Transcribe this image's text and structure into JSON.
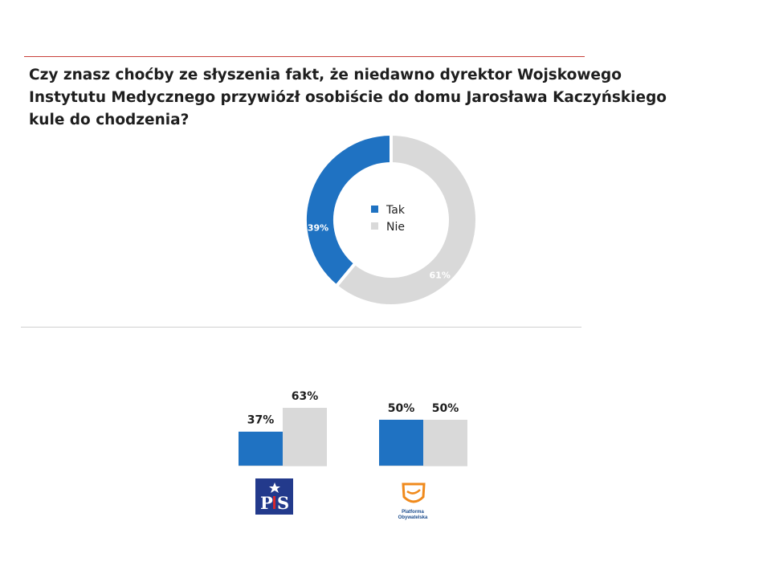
{
  "question": {
    "lines": [
      "Czy znasz choćby ze słyszenia fakt, że niedawno dyrektor Wojskowego",
      "Instytutu Medycznego przywiózł osobiście do domu Jarosława Kaczyńskiego",
      "kule do chodzenia?"
    ]
  },
  "colors": {
    "tak": "#1f72c2",
    "nie": "#d9d9d9",
    "accent_rule": "#c8403a"
  },
  "chart_data": [
    {
      "type": "pie",
      "variant": "donut",
      "labels": [
        "Tak",
        "Nie"
      ],
      "values": [
        39,
        61
      ],
      "data_labels": [
        "39%",
        "61%"
      ],
      "legend": {
        "placement": "center",
        "entries": [
          "Tak",
          "Nie"
        ]
      }
    },
    {
      "type": "bar",
      "group_logo": "PiS",
      "categories": [
        "Tak",
        "Nie"
      ],
      "values": [
        37,
        63
      ],
      "data_labels": [
        "37%",
        "63%"
      ],
      "ylim": [
        0,
        100
      ]
    },
    {
      "type": "bar",
      "group_logo": "Platforma Obywatelska",
      "categories": [
        "Tak",
        "Nie"
      ],
      "values": [
        50,
        50
      ],
      "data_labels": [
        "50%",
        "50%"
      ],
      "ylim": [
        0,
        100
      ]
    }
  ],
  "logos": {
    "pis": {
      "text_p": "P",
      "text_s": "S"
    },
    "po": {
      "line1": "Platforma",
      "line2": "Obywatelska"
    }
  }
}
